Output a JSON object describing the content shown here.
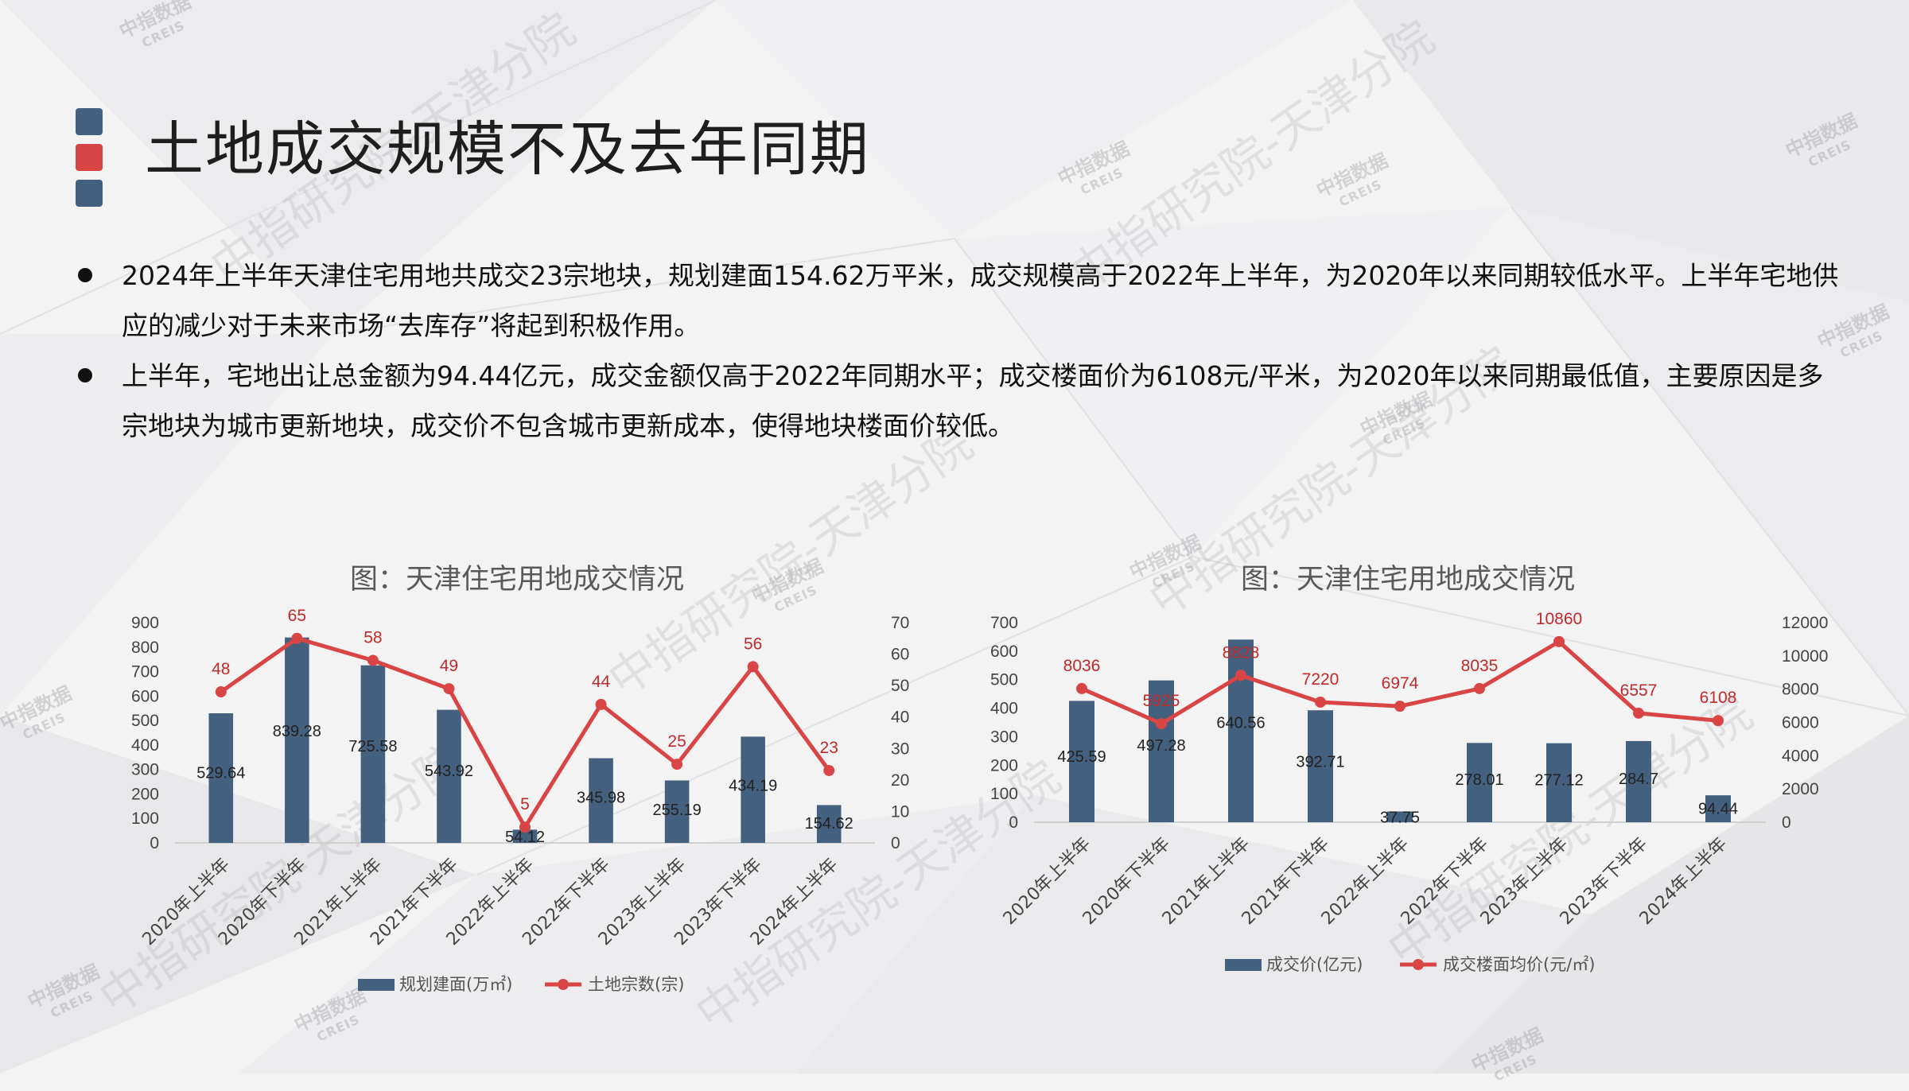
{
  "title": "土地成交规模不及去年同期",
  "bullets": [
    "2024年上半年天津住宅用地共成交23宗地块，规划建面154.62万平米，成交规模高于2022年上半年，为2020年以来同期较低水平。上半年宅地供应的减少对于未来市场“去库存”将起到积极作用。",
    "上半年，宅地出让总金额为94.44亿元，成交金额仅高于2022年同期水平；成交楼面价为6108元/平米，为2020年以来同期最低值，主要原因是多宗地块为城市更新地块，成交价不包含城市更新成本，使得地块楼面价较低。"
  ],
  "watermarks": {
    "logo_cn": "中指数据",
    "logo_en": "CREIS",
    "slogan": "中指研究院-天津分院"
  },
  "colors": {
    "bar": "#44607f",
    "line": "#d94545",
    "marker_dark": "#44607f",
    "marker_red": "#d94545"
  },
  "chart_data": [
    {
      "type": "bar",
      "title": "图：天津住宅用地成交情况",
      "categories": [
        "2020年上半年",
        "2020年下半年",
        "2021年上半年",
        "2021年下半年",
        "2022年上半年",
        "2022年下半年",
        "2023年上半年",
        "2023年下半年",
        "2024年上半年"
      ],
      "series": [
        {
          "name": "规划建面(万㎡)",
          "type": "bar",
          "axis": "left",
          "values": [
            529.64,
            839.28,
            725.58,
            543.92,
            54.12,
            345.98,
            255.19,
            434.19,
            154.62
          ]
        },
        {
          "name": "土地宗数(宗)",
          "type": "line",
          "axis": "right",
          "values": [
            48,
            65,
            58,
            49,
            5,
            44,
            25,
            56,
            23
          ]
        }
      ],
      "ylim_left": [
        0,
        900
      ],
      "ylim_right": [
        0,
        70
      ],
      "yticks_left": [
        "0",
        "100",
        "200",
        "300",
        "400",
        "500",
        "600",
        "700",
        "800",
        "900"
      ],
      "yticks_right": [
        "0",
        "10",
        "20",
        "30",
        "40",
        "50",
        "60",
        "70"
      ],
      "legend_position": "bottom",
      "grid": false
    },
    {
      "type": "bar",
      "title": "图：天津住宅用地成交情况",
      "categories": [
        "2020年上半年",
        "2020年下半年",
        "2021年上半年",
        "2021年下半年",
        "2022年上半年",
        "2022年下半年",
        "2023年上半年",
        "2023年下半年",
        "2024年上半年"
      ],
      "series": [
        {
          "name": "成交价(亿元)",
          "type": "bar",
          "axis": "left",
          "values": [
            425.59,
            497.28,
            640.56,
            392.71,
            37.75,
            278.01,
            277.12,
            284.7,
            94.44
          ]
        },
        {
          "name": "成交楼面均价(元/㎡)",
          "type": "line",
          "axis": "right",
          "values": [
            8036,
            5925,
            8828,
            7220,
            6974,
            8035,
            10860,
            6557,
            6108
          ]
        }
      ],
      "ylim_left": [
        0,
        700
      ],
      "ylim_right": [
        0,
        12000
      ],
      "yticks_left": [
        "0",
        "100",
        "200",
        "300",
        "400",
        "500",
        "600",
        "700"
      ],
      "yticks_right": [
        "0",
        "2000",
        "4000",
        "6000",
        "8000",
        "10000",
        "12000"
      ],
      "legend_position": "bottom",
      "grid": false
    }
  ]
}
